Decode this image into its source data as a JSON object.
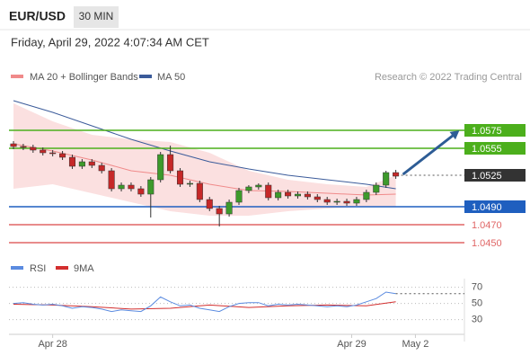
{
  "header": {
    "symbol": "EUR/USD",
    "timeframe": "30 MIN",
    "datetime": "Friday, April 29, 2022 4:07:34 AM CET"
  },
  "chart_data": [
    {
      "type": "candlestick",
      "legend": [
        "MA 20 + Bollinger Bands",
        "MA 50"
      ],
      "source": "Research © 2022 Trading Central",
      "xlim": [
        0,
        46
      ],
      "xticks": [
        {
          "value": 4,
          "label": "Apr 28"
        },
        {
          "value": 34.5,
          "label": "Apr 29"
        },
        {
          "value": 41,
          "label": "May 2"
        }
      ],
      "ylim": [
        1.043,
        1.062
      ],
      "up_color": "#3d9a2b",
      "down_color": "#c62828",
      "open": [
        1.056,
        1.0557,
        1.0556,
        1.0553,
        1.055,
        1.0549,
        1.0545,
        1.0535,
        1.054,
        1.0536,
        1.053,
        1.051,
        1.0514,
        1.051,
        1.0504,
        1.052,
        1.0548,
        1.053,
        1.0515,
        1.0516,
        1.0498,
        1.0488,
        1.0482,
        1.0495,
        1.0508,
        1.0512,
        1.0514,
        1.05,
        1.0506,
        1.0502,
        1.0504,
        1.0501,
        1.0498,
        1.0495,
        1.0496,
        1.0494,
        1.0498,
        1.0506,
        1.0514,
        1.0528
      ],
      "high": [
        1.0563,
        1.056,
        1.0559,
        1.0556,
        1.0553,
        1.0552,
        1.0548,
        1.0543,
        1.0543,
        1.0539,
        1.0533,
        1.0517,
        1.0517,
        1.0513,
        1.0523,
        1.0551,
        1.0558,
        1.0533,
        1.0519,
        1.0519,
        1.0501,
        1.0491,
        1.0498,
        1.0511,
        1.0514,
        1.0516,
        1.0517,
        1.0509,
        1.0509,
        1.0507,
        1.0507,
        1.0504,
        1.0501,
        1.0499,
        1.0499,
        1.0501,
        1.0509,
        1.0517,
        1.053,
        1.0531
      ],
      "low": [
        1.0554,
        1.0553,
        1.055,
        1.0547,
        1.0546,
        1.0542,
        1.0532,
        1.0532,
        1.0533,
        1.0527,
        1.0507,
        1.0507,
        1.0507,
        1.0501,
        1.0478,
        1.0517,
        1.0527,
        1.0512,
        1.0512,
        1.0495,
        1.0485,
        1.0468,
        1.0479,
        1.0492,
        1.0505,
        1.0509,
        1.0497,
        1.0497,
        1.0499,
        1.0499,
        1.0498,
        1.0495,
        1.0492,
        1.0492,
        1.0491,
        1.0491,
        1.0495,
        1.0503,
        1.0511,
        1.0521
      ],
      "close": [
        1.0557,
        1.0556,
        1.0553,
        1.055,
        1.0549,
        1.0545,
        1.0535,
        1.054,
        1.0536,
        1.053,
        1.051,
        1.0514,
        1.051,
        1.0504,
        1.052,
        1.0548,
        1.053,
        1.0515,
        1.0516,
        1.0498,
        1.0488,
        1.0482,
        1.0495,
        1.0508,
        1.0512,
        1.0514,
        1.05,
        1.0506,
        1.0502,
        1.0504,
        1.0501,
        1.0498,
        1.0495,
        1.0496,
        1.0494,
        1.0498,
        1.0506,
        1.0514,
        1.0528,
        1.0524
      ],
      "overlays": {
        "x": [
          0,
          4,
          8,
          12,
          16,
          20,
          24,
          28,
          32,
          36,
          39
        ],
        "bb_upper": [
          1.0605,
          1.0585,
          1.057,
          1.0565,
          1.0562,
          1.055,
          1.053,
          1.052,
          1.0515,
          1.0512,
          1.0525
        ],
        "bb_lower": [
          1.051,
          1.0515,
          1.0505,
          1.0495,
          1.0485,
          1.048,
          1.048,
          1.0485,
          1.0488,
          1.049,
          1.049
        ],
        "ma20": [
          1.056,
          1.0552,
          1.0542,
          1.053,
          1.0525,
          1.0515,
          1.0508,
          1.0507,
          1.0505,
          1.0503,
          1.0504
        ],
        "ma50": [
          1.0608,
          1.0595,
          1.058,
          1.0565,
          1.0552,
          1.054,
          1.0532,
          1.0525,
          1.052,
          1.0515,
          1.051
        ],
        "band_color": "#fbe0e0",
        "ma20_color": "#f08a8a",
        "ma50_color": "#3b5b9a"
      },
      "levels": [
        {
          "price": 1.0575,
          "color": "#4caf1c",
          "box": true,
          "style": "solid"
        },
        {
          "price": 1.0555,
          "color": "#4caf1c",
          "box": true,
          "style": "solid"
        },
        {
          "price": 1.0525,
          "color": "#333333",
          "box": true,
          "style": "dotted"
        },
        {
          "price": {
            "value": 1.049,
            "label": "1.0490"
          },
          "color": "#1f5fbf",
          "box": true,
          "style": "solid"
        },
        {
          "price": {
            "value": 1.047,
            "label": "1.0470"
          },
          "color": "#e06666",
          "box": false,
          "style": "solid"
        },
        {
          "price": {
            "value": 1.045,
            "label": "1.0450"
          },
          "color": "#e06666",
          "box": false,
          "style": "solid"
        }
      ],
      "arrow_color": "#2d5c95"
    },
    {
      "type": "rsi",
      "legend": [
        "RSI",
        "9MA"
      ],
      "ylim": [
        14,
        94
      ],
      "yticks": [
        70,
        50,
        30
      ],
      "rsi_color": "#5b8be0",
      "ma_color": "#d32f2f",
      "values": [
        50,
        51,
        49,
        48,
        49,
        47,
        44,
        46,
        45,
        43,
        40,
        42,
        41,
        40,
        47,
        58,
        52,
        47,
        48,
        44,
        42,
        40,
        46,
        50,
        51,
        51,
        47,
        49,
        48,
        49,
        48,
        47,
        46,
        47,
        46,
        48,
        52,
        56,
        64,
        62
      ],
      "ma_x": [
        0,
        4,
        8,
        12,
        16,
        20,
        24,
        28,
        32,
        36,
        39
      ],
      "ma_values": [
        49,
        48,
        46,
        43,
        44,
        48,
        45,
        47,
        48,
        47,
        52
      ]
    }
  ]
}
